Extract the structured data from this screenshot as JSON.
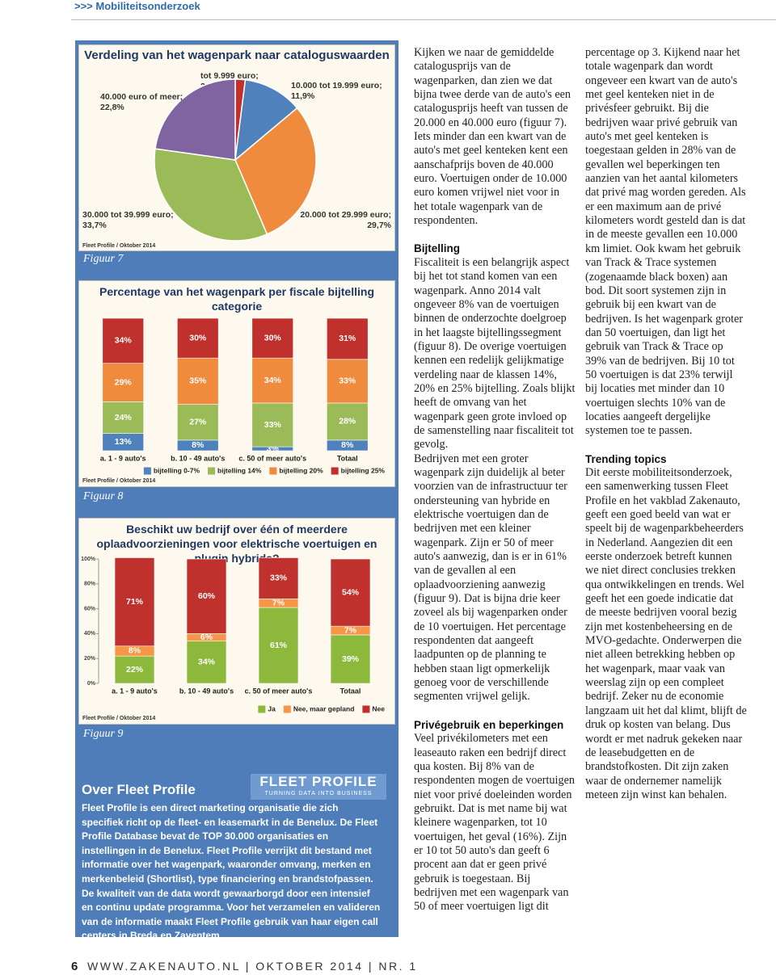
{
  "header": {
    "section": ">>> Mobiliteitsonderzoek"
  },
  "chart_data": [
    {
      "type": "pie",
      "caption": "Figuur 7",
      "title": "Verdeling van het wagenpark naar cataloguswaarden",
      "categories": [
        "tot 9.999 euro;",
        "10.000 tot 19.999 euro;",
        "20.000 tot 29.999 euro;",
        "30.000 tot 39.999 euro;",
        "40.000 euro of meer;"
      ],
      "values": [
        2.0,
        11.9,
        29.7,
        33.7,
        22.8
      ],
      "value_labels": [
        "2,0%",
        "11,9%",
        "29,7%",
        "33,7%",
        "22,8%"
      ],
      "colors": [
        "#c0302c",
        "#4f81bd",
        "#f08a3c",
        "#9bbb59",
        "#8064a2"
      ],
      "source": "Fleet Profile / Oktober 2014"
    },
    {
      "type": "bar",
      "stacked": true,
      "caption": "Figuur 8",
      "title": "Percentage van het wagenpark per fiscale bijtelling categorie",
      "categories": [
        "a. 1 - 9 auto's",
        "b. 10 - 49 auto's",
        "c. 50 of meer auto's",
        "Totaal"
      ],
      "ylim": [
        0,
        100
      ],
      "series": [
        {
          "name": "bijtelling 0-7%",
          "color": "#4f81bd",
          "values": [
            13,
            8,
            3,
            8
          ],
          "value_labels": [
            "13%",
            "8%",
            "3%",
            "8%"
          ]
        },
        {
          "name": "bijtelling 14%",
          "color": "#9bbb59",
          "values": [
            24,
            27,
            33,
            28
          ],
          "value_labels": [
            "24%",
            "27%",
            "33%",
            "28%"
          ]
        },
        {
          "name": "bijtelling 20%",
          "color": "#f08a3c",
          "values": [
            29,
            35,
            34,
            33
          ],
          "value_labels": [
            "29%",
            "35%",
            "34%",
            "33%"
          ]
        },
        {
          "name": "bijtelling 25%",
          "color": "#c0302c",
          "values": [
            34,
            30,
            30,
            31
          ],
          "value_labels": [
            "34%",
            "30%",
            "30%",
            "31%"
          ]
        }
      ],
      "source": "Fleet Profile / Oktober 2014"
    },
    {
      "type": "bar",
      "stacked": true,
      "caption": "Figuur 9",
      "title": "Beschikt uw bedrijf over één of meerdere oplaadvoorzieningen voor elektrische voertuigen en plugin hybrids?",
      "categories": [
        "a. 1 - 9 auto's",
        "b. 10 - 49 auto's",
        "c. 50 of meer auto's",
        "Totaal"
      ],
      "ylim": [
        0,
        100
      ],
      "yticks": [
        {
          "value": 0,
          "label": "0%"
        },
        {
          "value": 20,
          "label": "20%"
        },
        {
          "value": 40,
          "label": "40%"
        },
        {
          "value": 60,
          "label": "60%"
        },
        {
          "value": 80,
          "label": "80%"
        },
        {
          "value": 100,
          "label": "100%"
        }
      ],
      "series": [
        {
          "name": "Ja",
          "color": "#8cb83c",
          "values": [
            22,
            34,
            61,
            39
          ],
          "value_labels": [
            "22%",
            "34%",
            "61%",
            "39%"
          ]
        },
        {
          "name": "Nee, maar gepland",
          "color": "#f79646",
          "values": [
            8,
            6,
            7,
            7
          ],
          "value_labels": [
            "8%",
            "6%",
            "7%",
            "7%"
          ]
        },
        {
          "name": "Nee",
          "color": "#c0302c",
          "values": [
            71,
            60,
            33,
            54
          ],
          "value_labels": [
            "71%",
            "60%",
            "33%",
            "54%"
          ]
        }
      ],
      "source": "Fleet Profile / Oktober 2014"
    }
  ],
  "about": {
    "heading": "Over Fleet Profile",
    "logo_name": "FLEET PROFILE",
    "logo_tagline": "TURNING DATA INTO BUSINESS",
    "text": "Fleet Profile is een direct marketing organisatie die zich specifiek richt op de fleet- en leasemarkt in de Benelux. De Fleet Profile Database bevat de TOP 30.000 organisaties en instellingen in de Benelux. Fleet Profile verrijkt dit bestand met informatie over het wagenpark, waaronder omvang, merken en merkenbeleid (Shortlist), type financiering en brandstofpassen. De kwaliteit van de data wordt gewaarborgd door een intensief en continu update programma. Voor het verzamelen en valideren van de informatie maakt Fleet Profile gebruik van haar eigen call centers in Breda en Zaventem."
  },
  "article": {
    "intro": "Kijken we naar de gemiddelde catalogusprijs van de wagenparken, dan zien we dat bijna twee derde van de auto's een catalogusprijs heeft van tussen de 20.000 en 40.000 euro (figuur 7). Iets minder dan een kwart van de auto's met geel kenteken kent een aanschafprijs boven de 40.000 euro. Voertuigen onder de 10.000 euro komen vrijwel niet voor in het totale wagenpark van de respondenten.",
    "sections": [
      {
        "heading": "Bijtelling",
        "paragraphs": [
          "Fiscaliteit is een belangrijk aspect bij het tot stand komen van een wagenpark. Anno 2014 valt ongeveer 8% van de voertuigen binnen de onderzochte doelgroep in het laagste bijtellingssegment (figuur 8). De overige voertuigen kennen een redelijk gelijkmatige verdeling naar de klassen 14%, 20% en 25% bijtelling. Zoals blijkt heeft de omvang van het wagenpark geen grote invloed op de samenstelling naar fiscaliteit tot gevolg.",
          "Bedrijven met een groter wagenpark zijn duidelijk al beter voorzien van de infrastructuur ter ondersteuning van hybride en elektrische voertuigen dan de bedrijven met een kleiner wagenpark. Zijn er 50 of meer auto's aanwezig, dan is er in 61% van de gevallen al een oplaadvoorziening aanwezig (figuur 9). Dat is bijna drie keer zoveel als bij wagenparken onder de 10 voertuigen. Het percentage respondenten dat aangeeft laadpunten op de planning te hebben staan ligt opmerkelijk genoeg voor de verschillende segmenten vrijwel gelijk."
        ]
      },
      {
        "heading": "Privégebruik en beperkingen",
        "paragraphs": [
          "Veel privékilometers met een leaseauto raken een bedrijf direct qua kosten. Bij 8% van de respondenten mogen de voertuigen niet voor privé doeleinden worden gebruikt. Dat is met name bij wat kleinere wagenparken, tot 10 voertuigen, het geval (16%). Zijn er 10 tot 50 auto's dan geeft 6 procent aan dat er geen privé gebruik is toegestaan. Bij bedrijven met een wagenpark van 50 of meer voertuigen ligt dit percentage op 3. Kijkend naar het totale wagenpark dan wordt ongeveer een kwart van de auto's met geel kenteken niet in de privésfeer gebruikt. Bij die bedrijven waar privé gebruik van auto's met geel kenteken is toegestaan gelden in 28% van de gevallen wel beperkingen ten aanzien van het aantal kilometers dat privé mag worden gereden. Als er een maximum aan de privé kilometers wordt gesteld dan is dat in de meeste gevallen een 10.000 km limiet. Ook kwam het gebruik van Track & Trace systemen (zogenaamde black boxen) aan bod. Dit soort systemen zijn in gebruik bij een kwart van de bedrijven. Is het wagenpark groter dan 50 voertuigen, dan ligt het gebruik van Track & Trace op 39% van de bedrijven. Bij 10 tot 50 voertuigen is dat 23% terwijl bij locaties met minder dan 10 voertuigen slechts 10% van de locaties aangeeft dergelijke systemen toe te passen."
        ]
      },
      {
        "heading": "Trending topics",
        "paragraphs": [
          "Dit eerste mobiliteitsonderzoek, een samenwerking tussen Fleet Profile en het vakblad Zakenauto, geeft een goed beeld van wat er speelt bij de wagenparkbeheerders in Nederland. Aangezien dit een eerste onderzoek betreft kunnen we niet direct conclusies trekken qua ontwikkelingen en trends. Wel geeft het een goede indicatie dat de meeste bedrijven vooral bezig zijn met kostenbeheersing en de MVO-gedachte. Onderwerpen die niet alleen betrekking hebben op het wagenpark, maar vaak van weerslag zijn op een compleet bedrijf. Zeker nu de economie langzaam uit het dal klimt, blijft de druk op kosten van belang. Dus wordt er met nadruk gekeken naar de leasebudgetten en de brandstofkosten. Dit zijn zaken waar de ondernemer namelijk meteen zijn winst kan behalen."
        ]
      }
    ]
  },
  "footer": {
    "page_number": "6",
    "text": "WWW.ZAKENAUTO.NL | OKTOBER 2014 | NR. 1"
  }
}
